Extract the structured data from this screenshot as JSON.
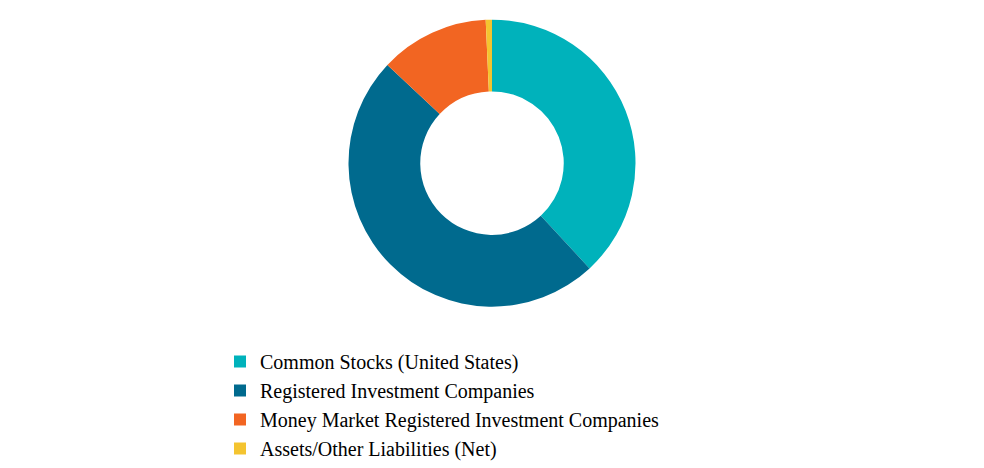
{
  "chart_data": {
    "type": "pie",
    "categories": [
      "Common Stocks (United States)",
      "Registered Investment Companies",
      "Money Market Registered Investment Companies",
      "Assets/Other Liabilities (Net)"
    ],
    "values": [
      38.1,
      48.9,
      12.3,
      0.7
    ],
    "colors": [
      "#00b2bb",
      "#006a8e",
      "#f26522",
      "#f4c430"
    ],
    "legend": "bottom",
    "data_labels": false
  }
}
